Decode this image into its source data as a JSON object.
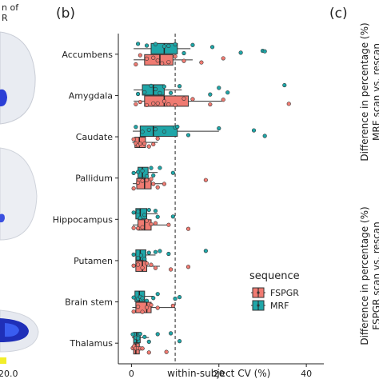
{
  "left_panel": {
    "fragment_title": "n of\nR",
    "fragment_tick": "20.0",
    "colorbar_color": "#f2ee2a"
  },
  "panel_b": {
    "label": "(b)"
  },
  "panel_c": {
    "label": "(c)",
    "ylabel_top": [
      "Difference in percentage (%)",
      "MRF scan vs. rescan"
    ],
    "ylabel_bottom": [
      "Difference in percentage (%)",
      "FSPGR scan vs. rescan"
    ]
  },
  "legend": {
    "title": "sequence",
    "items": [
      {
        "name": "FSPGR",
        "color": "#f07b72"
      },
      {
        "name": "MRF",
        "color": "#1fa6a8"
      }
    ]
  },
  "colors": {
    "FSPGR": "#f07b72",
    "MRF": "#1fa6a8",
    "dashed_line": "#222222"
  },
  "chart_data": {
    "type": "boxplot",
    "orientation": "horizontal",
    "xlabel": "within-subject CV (%)",
    "ylabel": "",
    "xlim": [
      -3,
      44
    ],
    "xticks": [
      0,
      20,
      40
    ],
    "grid": false,
    "legend_position": "right",
    "reference_line_x": 10,
    "categories": [
      "Accumbens",
      "Amygdala",
      "Caudate",
      "Pallidum",
      "Hippocampus",
      "Putamen",
      "Brain stem",
      "Thalamus"
    ],
    "series": [
      {
        "name": "MRF",
        "boxes": [
          {
            "q1": 4.5,
            "median": 7.5,
            "q3": 10.5,
            "whisker_low": 0.5,
            "whisker_high": 13.5
          },
          {
            "q1": 2.5,
            "median": 5.0,
            "q3": 7.5,
            "whisker_low": 0.5,
            "whisker_high": 11.5
          },
          {
            "q1": 2.0,
            "median": 5.0,
            "q3": 10.5,
            "whisker_low": 0.3,
            "whisker_high": 20.0
          },
          {
            "q1": 1.5,
            "median": 2.5,
            "q3": 3.8,
            "whisker_low": 0.3,
            "whisker_high": 6.0
          },
          {
            "q1": 1.0,
            "median": 2.0,
            "q3": 3.5,
            "whisker_low": 0.2,
            "whisker_high": 6.0
          },
          {
            "q1": 1.0,
            "median": 2.0,
            "q3": 3.3,
            "whisker_low": 0.2,
            "whisker_high": 5.5
          },
          {
            "q1": 0.8,
            "median": 1.8,
            "q3": 3.0,
            "whisker_low": 0.2,
            "whisker_high": 5.0
          },
          {
            "q1": 0.5,
            "median": 1.2,
            "q3": 2.0,
            "whisker_low": 0.1,
            "whisker_high": 4.0
          }
        ],
        "points": [
          [
            1.5,
            3.5,
            5.5,
            7.5,
            8.5,
            10,
            12,
            14,
            18.5,
            25,
            30,
            30.5
          ],
          [
            1.5,
            3,
            4.5,
            5.5,
            6.5,
            7.5,
            9,
            11,
            18,
            20,
            22,
            35
          ],
          [
            1,
            2.5,
            4,
            5.5,
            7.5,
            10,
            10.5,
            13,
            20,
            28,
            30.5
          ],
          [
            0.5,
            1.5,
            2.5,
            3.5,
            4.5,
            5,
            6.5,
            9.5
          ],
          [
            0.5,
            1.5,
            2,
            3,
            4,
            5.5,
            6,
            9.5
          ],
          [
            0.5,
            1.5,
            2.2,
            3,
            4,
            5.5,
            6.5,
            8.5,
            17
          ],
          [
            0.5,
            1.5,
            2,
            2.5,
            3.5,
            5,
            6,
            10,
            11
          ],
          [
            0.3,
            1,
            1.5,
            2,
            3,
            4,
            6,
            9,
            11
          ]
        ]
      },
      {
        "name": "FSPGR",
        "boxes": [
          {
            "q1": 3.0,
            "median": 6.5,
            "q3": 9.5,
            "whisker_low": 0.5,
            "whisker_high": 14.0
          },
          {
            "q1": 3.0,
            "median": 7.5,
            "q3": 13.0,
            "whisker_low": 0.5,
            "whisker_high": 21.0
          },
          {
            "q1": 0.8,
            "median": 1.8,
            "q3": 3.2,
            "whisker_low": 0.2,
            "whisker_high": 6.0
          },
          {
            "q1": 1.2,
            "median": 3.0,
            "q3": 4.5,
            "whisker_low": 0.3,
            "whisker_high": 7.5
          },
          {
            "q1": 1.5,
            "median": 3.0,
            "q3": 4.5,
            "whisker_low": 0.3,
            "whisker_high": 8.0
          },
          {
            "q1": 1.0,
            "median": 2.5,
            "q3": 3.5,
            "whisker_low": 0.3,
            "whisker_high": 6.5
          },
          {
            "q1": 1.0,
            "median": 3.5,
            "q3": 4.5,
            "whisker_low": 0.2,
            "whisker_high": 10.0
          },
          {
            "q1": 0.5,
            "median": 1.0,
            "q3": 1.8,
            "whisker_low": 0.1,
            "whisker_high": 3.0
          }
        ],
        "points": [
          [
            1,
            2,
            3.5,
            5,
            6,
            7,
            8.5,
            10,
            12,
            16,
            21
          ],
          [
            1,
            2,
            3.5,
            5,
            6,
            7.5,
            8.5,
            10,
            12,
            14,
            18,
            21,
            36
          ],
          [
            0.5,
            1,
            1.5,
            2,
            3,
            4,
            5,
            6
          ],
          [
            0.5,
            1.5,
            2.5,
            3.5,
            4.5,
            5,
            6,
            7.5,
            17
          ],
          [
            0.5,
            1.5,
            2.5,
            3.5,
            4.5,
            5.5,
            8.5,
            13
          ],
          [
            0.5,
            1.5,
            2.5,
            3.5,
            4.5,
            5.5,
            9,
            13
          ],
          [
            0.5,
            1.5,
            2.5,
            3.5,
            4.5,
            6,
            9.5
          ],
          [
            0.3,
            0.6,
            1,
            1.5,
            2,
            2.5,
            4,
            8
          ]
        ]
      }
    ]
  }
}
